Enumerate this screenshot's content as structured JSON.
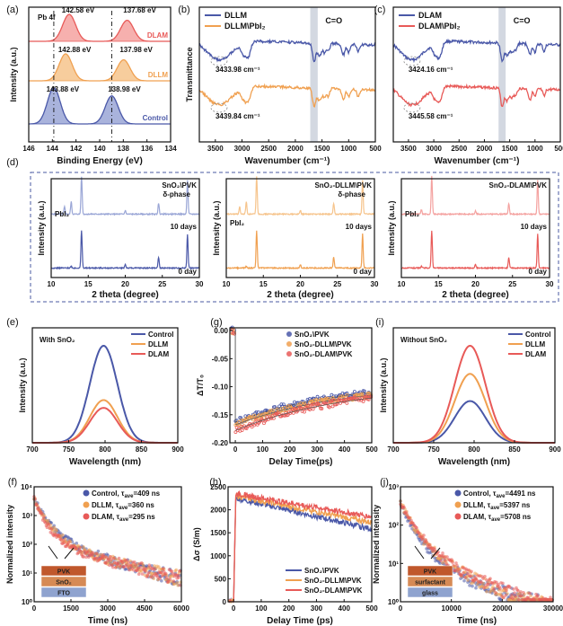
{
  "colors": {
    "control": "#4a58a8",
    "dllm": "#f0a050",
    "dlam": "#e85a58",
    "control_light": "#9aa6d6",
    "dllm_light": "#f6c48c",
    "dlam_light": "#f4a2a0",
    "frame_dash": "#4a5aa0",
    "band": "#c0c8d4"
  },
  "chart_data": [
    {
      "id": "a",
      "panel_label": "(a)",
      "type": "line",
      "xlabel": "Binding Energy (eV)",
      "ylabel": "Intensity (a.u.)",
      "xlim": [
        146,
        134
      ],
      "x_ticks": [
        "146",
        "144",
        "142",
        "140",
        "138",
        "136",
        "134"
      ],
      "annotation_main": "Pb 4f",
      "series": [
        {
          "name": "DLAM",
          "peaks": [
            "142.58 eV",
            "137.68 eV"
          ],
          "peak_x": [
            142.58,
            137.68
          ],
          "offset": 2
        },
        {
          "name": "DLLM",
          "peaks": [
            "142.88 eV",
            "137.98 eV"
          ],
          "peak_x": [
            142.88,
            137.98
          ],
          "offset": 1
        },
        {
          "name": "Control",
          "peaks": [
            "143.88 eV",
            "138.98 eV"
          ],
          "peak_x": [
            143.88,
            138.98
          ],
          "offset": 0
        }
      ]
    },
    {
      "id": "b",
      "panel_label": "(b)",
      "type": "line",
      "xlabel": "Wavenumber (cm⁻¹)",
      "ylabel": "Transmittance",
      "xlim": [
        3800,
        500
      ],
      "x_ticks": [
        "3500",
        "3000",
        "2500",
        "2000",
        "1500",
        "1000",
        "500"
      ],
      "band_label": "C=O",
      "series": [
        {
          "name": "DLLM",
          "annotation": "3433.98 cm⁻¹"
        },
        {
          "name": "DLLM\\PbI₂",
          "annotation": "3439.84 cm⁻¹"
        }
      ]
    },
    {
      "id": "c",
      "panel_label": "(c)",
      "type": "line",
      "xlabel": "Wavenumber (cm⁻¹)",
      "ylabel": "",
      "xlim": [
        3800,
        500
      ],
      "x_ticks": [
        "3500",
        "3000",
        "2500",
        "2000",
        "1500",
        "1000",
        "500"
      ],
      "band_label": "C=O",
      "series": [
        {
          "name": "DLAM",
          "annotation": "3424.16 cm⁻¹"
        },
        {
          "name": "DLAM\\PbI₂",
          "annotation": "3445.58 cm⁻¹"
        }
      ]
    },
    {
      "id": "d",
      "panel_label": "(d)",
      "type": "line",
      "subplots": [
        {
          "title": "SnO₂\\PVK",
          "xlabel": "2 theta (degree)",
          "ylabel": "Intensity (a.u.)",
          "labels": [
            "PbI₂",
            "δ-phase",
            "10 days",
            "0 day"
          ],
          "xlim": [
            10,
            30
          ],
          "x_ticks": [
            "10",
            "15",
            "20",
            "25",
            "30"
          ]
        },
        {
          "title": "SnO₂-DLLM\\PVK",
          "xlabel": "2 theta (degree)",
          "ylabel": "Intensity (a.u.)",
          "labels": [
            "PbI₂",
            "δ-phase",
            "10 days",
            "0 day"
          ],
          "xlim": [
            10,
            30
          ],
          "x_ticks": [
            "10",
            "15",
            "20",
            "25",
            "30"
          ]
        },
        {
          "title": "SnO₂-DLAM\\PVK",
          "xlabel": "2 theta (degree)",
          "ylabel": "Intensity (a.u.)",
          "labels": [
            "PbI₂",
            "10 days",
            "0 day"
          ],
          "xlim": [
            10,
            30
          ],
          "x_ticks": [
            "10",
            "15",
            "20",
            "25",
            "30"
          ]
        }
      ],
      "peak_positions": [
        12.7,
        14.1,
        20.0,
        24.5,
        28.4
      ]
    },
    {
      "id": "e",
      "panel_label": "(e)",
      "type": "line",
      "xlabel": "Wavelength (nm)",
      "ylabel": "Intensity (a.u.)",
      "xlim": [
        700,
        900
      ],
      "x_ticks": [
        "700",
        "750",
        "800",
        "850",
        "900"
      ],
      "inset": "With SnO₂",
      "series": [
        {
          "name": "Control",
          "peak_x": 798,
          "relative_height": 1.0
        },
        {
          "name": "DLLM",
          "peak_x": 798,
          "relative_height": 0.44
        },
        {
          "name": "DLAM",
          "peak_x": 798,
          "relative_height": 0.36
        }
      ]
    },
    {
      "id": "g",
      "panel_label": "(g)",
      "type": "scatter",
      "xlabel": "Delay Time(ps)",
      "ylabel": "ΔT/T₀",
      "xlim": [
        -20,
        500
      ],
      "ylim": [
        -0.2,
        0.005
      ],
      "x_ticks": [
        "0",
        "100",
        "200",
        "300",
        "400",
        "500"
      ],
      "y_ticks": [
        "0.00",
        "-0.05",
        "-0.10",
        "-0.15",
        "-0.20"
      ],
      "series": [
        {
          "name": "SnO₂\\PVK",
          "start": -0.163,
          "end": -0.11
        },
        {
          "name": "SnO₂-DLLM\\PVK",
          "start": -0.168,
          "end": -0.115
        },
        {
          "name": "SnO₂-DLAM\\PVK",
          "start": -0.178,
          "end": -0.12
        }
      ]
    },
    {
      "id": "i",
      "panel_label": "(i)",
      "type": "line",
      "xlabel": "Wavelength (nm)",
      "ylabel": "Intensity (a.u.)",
      "xlim": [
        700,
        900
      ],
      "x_ticks": [
        "700",
        "750",
        "800",
        "850",
        "900"
      ],
      "inset": "Without SnO₂",
      "series": [
        {
          "name": "Control",
          "peak_x": 795,
          "relative_height": 0.43
        },
        {
          "name": "DLLM",
          "peak_x": 795,
          "relative_height": 0.71
        },
        {
          "name": "DLAM",
          "peak_x": 795,
          "relative_height": 1.0
        }
      ]
    },
    {
      "id": "f",
      "panel_label": "(f)",
      "type": "scatter",
      "xlabel": "Time (ns)",
      "ylabel": "Normalized intensity",
      "xlim": [
        0,
        6000
      ],
      "ylim_log": [
        0,
        4
      ],
      "x_ticks": [
        "0",
        "1500",
        "3000",
        "4500",
        "6000"
      ],
      "y_ticks": [
        "10⁰",
        "10¹",
        "10²",
        "10³",
        "10⁴"
      ],
      "series": [
        {
          "name": "Control, τ",
          "sub": "ave",
          "value": "=409 ns"
        },
        {
          "name": "DLLM, τ",
          "sub": "ave",
          "value": "=360 ns"
        },
        {
          "name": "DLAM, τ",
          "sub": "ave",
          "value": "=295 ns"
        }
      ],
      "device_layers": [
        "PVK",
        "SnO₂",
        "FTO"
      ]
    },
    {
      "id": "h",
      "panel_label": "(h)",
      "type": "line",
      "xlabel": "Delay Time (ps)",
      "ylabel": "Δσ (S/m)",
      "xlim": [
        -20,
        500
      ],
      "ylim": [
        0,
        2500
      ],
      "x_ticks": [
        "0",
        "100",
        "200",
        "300",
        "400",
        "500"
      ],
      "y_ticks": [
        "0",
        "500",
        "1000",
        "1500",
        "2000",
        "2500"
      ],
      "series": [
        {
          "name": "SnO₂\\PVK",
          "peak": 2250,
          "end": 1580
        },
        {
          "name": "SnO₂-DLLM\\PVK",
          "peak": 2300,
          "end": 1720
        },
        {
          "name": "SnO₂-DLAM\\PVK",
          "peak": 2350,
          "end": 1850
        }
      ]
    },
    {
      "id": "j",
      "panel_label": "(j)",
      "type": "scatter",
      "xlabel": "Time (ns)",
      "ylabel": "Normalized intensity",
      "xlim": [
        0,
        30000
      ],
      "ylim_log": [
        0,
        3
      ],
      "x_ticks": [
        "0",
        "10000",
        "20000",
        "30000"
      ],
      "y_ticks": [
        "10⁰",
        "10¹",
        "10²",
        "10³"
      ],
      "series": [
        {
          "name": "Control, τ",
          "sub": "ave",
          "value": "=4491 ns"
        },
        {
          "name": "DLLM, τ",
          "sub": "ave",
          "value": "=5397 ns"
        },
        {
          "name": "DLAM, τ",
          "sub": "ave",
          "value": "=5708 ns"
        }
      ],
      "device_layers": [
        "PVK",
        "surfactant",
        "glass"
      ]
    }
  ]
}
